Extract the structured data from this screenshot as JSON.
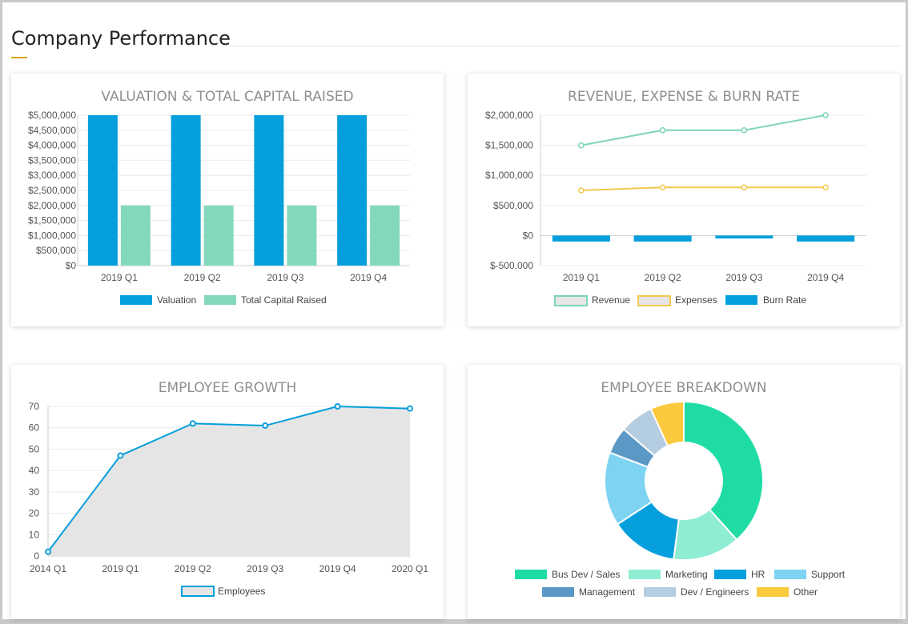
{
  "page": {
    "title": "Company Performance",
    "accent_color": "#e0a21a"
  },
  "colors": {
    "blue": "#049fdc",
    "mint": "#84d8bd",
    "green_line": "#7dd5b5",
    "yellow_line": "#f2c94c",
    "area_fill": "#e5e5e5",
    "grid": "#ececec"
  },
  "chart_data": [
    {
      "id": "valuation",
      "type": "bar",
      "title": "VALUATION & TOTAL CAPITAL RAISED",
      "categories": [
        "2019 Q1",
        "2019 Q2",
        "2019 Q3",
        "2019 Q4"
      ],
      "series": [
        {
          "name": "Valuation",
          "values": [
            5000000,
            5000000,
            5000000,
            5000000
          ],
          "color": "#049fdc"
        },
        {
          "name": "Total Capital Raised",
          "values": [
            2000000,
            2000000,
            2000000,
            2000000
          ],
          "color": "#84d8bd"
        }
      ],
      "ylim": [
        0,
        5000000
      ],
      "yticks": [
        5000000,
        4500000,
        4000000,
        3500000,
        3000000,
        2500000,
        2000000,
        1500000,
        1000000,
        500000,
        0
      ],
      "ytick_labels": [
        "$5,000,000",
        "$4,500,000",
        "$4,000,000",
        "$3,500,000",
        "$3,000,000",
        "$2,500,000",
        "$2,000,000",
        "$1,500,000",
        "$1,000,000",
        "$500,000",
        "$0"
      ],
      "grid": true,
      "legend": "bottom"
    },
    {
      "id": "revenue",
      "type": "bar+line",
      "title": "REVENUE, EXPENSE & BURN RATE",
      "categories": [
        "2019 Q1",
        "2019 Q2",
        "2019 Q3",
        "2019 Q4"
      ],
      "series": [
        {
          "name": "Revenue",
          "type": "line",
          "values": [
            1500000,
            1750000,
            1750000,
            2000000
          ],
          "color": "#7dd5b5"
        },
        {
          "name": "Expenses",
          "type": "line",
          "values": [
            750000,
            800000,
            800000,
            800000
          ],
          "color": "#f2c94c"
        },
        {
          "name": "Burn Rate",
          "type": "bar",
          "values": [
            -100000,
            -100000,
            -50000,
            -100000
          ],
          "color": "#049fdc"
        }
      ],
      "ylim": [
        -500000,
        2000000
      ],
      "yticks": [
        2000000,
        1500000,
        1000000,
        500000,
        0,
        -500000
      ],
      "ytick_labels": [
        "$2,000,000",
        "$1,500,000",
        "$1,000,000",
        "$500,000",
        "$0",
        "$-500,000"
      ],
      "grid": true,
      "legend": "bottom"
    },
    {
      "id": "growth",
      "type": "area",
      "title": "EMPLOYEE GROWTH",
      "categories": [
        "2014 Q1",
        "2019 Q1",
        "2019 Q2",
        "2019 Q3",
        "2019 Q4",
        "2020 Q1"
      ],
      "series": [
        {
          "name": "Employees",
          "values": [
            2,
            47,
            62,
            61,
            70,
            69
          ],
          "color": "#049fdc"
        }
      ],
      "ylim": [
        0,
        70
      ],
      "yticks": [
        70,
        60,
        50,
        40,
        30,
        20,
        10,
        0
      ],
      "ytick_labels": [
        "70",
        "60",
        "50",
        "40",
        "30",
        "20",
        "10",
        "0"
      ],
      "grid": true,
      "legend": "bottom"
    },
    {
      "id": "breakdown",
      "type": "pie",
      "title": "EMPLOYEE BREAKDOWN",
      "series": [
        {
          "name": "Bus Dev / Sales",
          "value": 28,
          "color": "#1fdca5"
        },
        {
          "name": "Marketing",
          "value": 10,
          "color": "#8eedd2"
        },
        {
          "name": "HR",
          "value": 10,
          "color": "#049fdc"
        },
        {
          "name": "Support",
          "value": 11,
          "color": "#7fd3f2"
        },
        {
          "name": "Management",
          "value": 4,
          "color": "#5b98c6"
        },
        {
          "name": "Dev / Engineers",
          "value": 5,
          "color": "#b5cde0"
        },
        {
          "name": "Other",
          "value": 5,
          "color": "#fbc93d"
        }
      ],
      "legend": "bottom"
    }
  ]
}
